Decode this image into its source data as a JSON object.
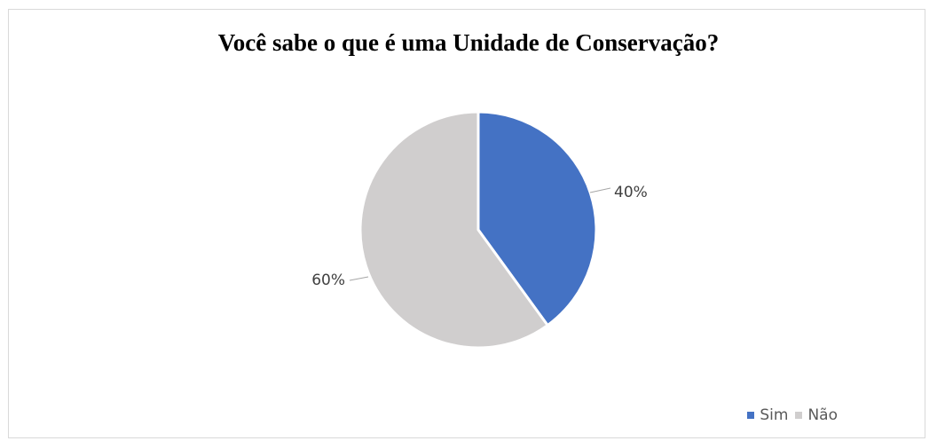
{
  "chart_data": {
    "type": "pie",
    "title": "Você sabe o que é uma Unidade de Conservação?",
    "categories": [
      "Sim",
      "Não"
    ],
    "values": [
      40,
      60
    ],
    "labels": [
      "40%",
      "60%"
    ],
    "colors": [
      "#4472c4",
      "#d0cece"
    ],
    "legend_position": "bottom-right"
  }
}
